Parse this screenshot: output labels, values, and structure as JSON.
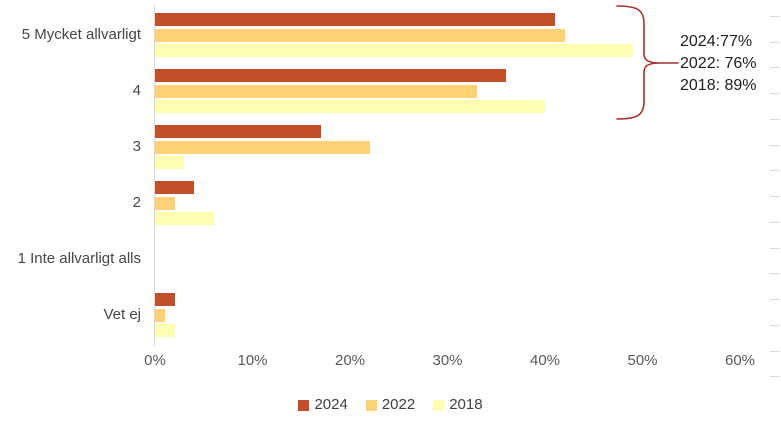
{
  "chart_data": {
    "type": "bar",
    "orientation": "horizontal",
    "title": "",
    "categories": [
      "5 Mycket allvarligt",
      "4",
      "3",
      "2",
      "1 Inte allvarligt alls",
      "Vet ej"
    ],
    "series": [
      {
        "name": "2024",
        "color": "#C1502A",
        "values": [
          41,
          36,
          17,
          4,
          0,
          2
        ]
      },
      {
        "name": "2022",
        "color": "#FFD177",
        "values": [
          42,
          33,
          22,
          2,
          0,
          1
        ]
      },
      {
        "name": "2018",
        "color": "#FFFFB2",
        "values": [
          49,
          40,
          3,
          6,
          0,
          2
        ]
      }
    ],
    "x_axis": {
      "tick_labels": [
        "0%",
        "10%",
        "20%",
        "30%",
        "40%",
        "50%",
        "60%"
      ],
      "tick_values": [
        0,
        10,
        20,
        30,
        40,
        50,
        60
      ],
      "min": 0,
      "max": 60,
      "unit": "%"
    },
    "grid": false,
    "legend_position": "bottom",
    "legend": [
      "2024",
      "2022",
      "2018"
    ],
    "right_edge_tick_count": 15,
    "axis_color": "#D9D9D9",
    "tick_label_color": "#595959",
    "category_label_color": "#474747"
  },
  "annotation": {
    "lines": [
      "2024:77%",
      "2022: 76%",
      "2018: 89%"
    ],
    "brace_color": "#A33230",
    "text_color": "#1F1F1F"
  }
}
